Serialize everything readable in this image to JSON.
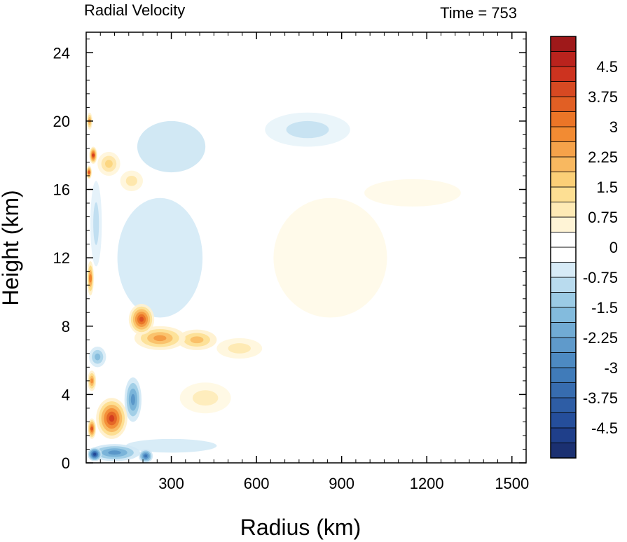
{
  "chart_data": {
    "type": "heatmap",
    "title_left": "Radial Velocity",
    "title_right": "Time = 753",
    "xlabel": "Radius (km)",
    "ylabel": "Height (km)",
    "xlim": [
      0,
      1550
    ],
    "ylim": [
      0,
      25.2
    ],
    "x_ticks": [
      300,
      600,
      900,
      1200,
      1500
    ],
    "x_tick_labels": [
      "300",
      "600",
      "900",
      "1200",
      "1500"
    ],
    "y_ticks": [
      0,
      4,
      8,
      12,
      16,
      20,
      24
    ],
    "y_tick_labels": [
      "0",
      "4",
      "8",
      "12",
      "16",
      "20",
      "24"
    ],
    "colorbar": {
      "min": -5.25,
      "max": 5.25,
      "step": 0.375,
      "labels": [
        "4.5",
        "3.75",
        "3",
        "2.25",
        "1.5",
        "0.75",
        "0",
        "-0.75",
        "-1.5",
        "-2.25",
        "-3",
        "-3.75",
        "-4.5"
      ],
      "label_values": [
        4.5,
        3.75,
        3,
        2.25,
        1.5,
        0.75,
        0,
        -0.75,
        -1.5,
        -2.25,
        -3,
        -3.75,
        -4.5
      ]
    },
    "features": [
      {
        "x": 90,
        "y": 2.6,
        "rx": 55,
        "ry": 1.2,
        "v": 4.2
      },
      {
        "x": 20,
        "y": 2.0,
        "rx": 15,
        "ry": 0.6,
        "v": 3.8
      },
      {
        "x": 195,
        "y": 8.4,
        "rx": 45,
        "ry": 0.9,
        "v": 3.9
      },
      {
        "x": 260,
        "y": 7.3,
        "rx": 90,
        "ry": 0.7,
        "v": 2.6
      },
      {
        "x": 390,
        "y": 7.2,
        "rx": 70,
        "ry": 0.6,
        "v": 2.0
      },
      {
        "x": 540,
        "y": 6.7,
        "rx": 80,
        "ry": 0.6,
        "v": 1.0
      },
      {
        "x": 15,
        "y": 10.8,
        "rx": 12,
        "ry": 1.0,
        "v": 3.0
      },
      {
        "x": 25,
        "y": 18.0,
        "rx": 14,
        "ry": 0.5,
        "v": 4.2
      },
      {
        "x": 10,
        "y": 17.0,
        "rx": 10,
        "ry": 0.4,
        "v": 3.8
      },
      {
        "x": 12,
        "y": 20.0,
        "rx": 10,
        "ry": 0.5,
        "v": 2.6
      },
      {
        "x": 80,
        "y": 17.5,
        "rx": 40,
        "ry": 0.7,
        "v": 1.6
      },
      {
        "x": 160,
        "y": 16.5,
        "rx": 40,
        "ry": 0.6,
        "v": 1.1
      },
      {
        "x": 20,
        "y": 4.8,
        "rx": 15,
        "ry": 0.6,
        "v": 2.8
      },
      {
        "x": 100,
        "y": 0.6,
        "rx": 90,
        "ry": 0.5,
        "v": -2.6
      },
      {
        "x": 30,
        "y": 0.5,
        "rx": 25,
        "ry": 0.4,
        "v": -4.5
      },
      {
        "x": 210,
        "y": 0.4,
        "rx": 25,
        "ry": 0.4,
        "v": -3.4
      },
      {
        "x": 165,
        "y": 3.7,
        "rx": 30,
        "ry": 1.3,
        "v": -2.6
      },
      {
        "x": 40,
        "y": 6.2,
        "rx": 30,
        "ry": 0.6,
        "v": -1.7
      },
      {
        "x": 35,
        "y": 14.0,
        "rx": 20,
        "ry": 2.5,
        "v": -0.9
      },
      {
        "x": 300,
        "y": 18.5,
        "rx": 120,
        "ry": 1.5,
        "v": -0.7
      },
      {
        "x": 780,
        "y": 19.5,
        "rx": 150,
        "ry": 1.0,
        "v": -0.8
      },
      {
        "x": 420,
        "y": 3.8,
        "rx": 90,
        "ry": 0.9,
        "v": 0.9
      },
      {
        "x": 300,
        "y": 1.0,
        "rx": 160,
        "ry": 0.4,
        "v": -0.6
      },
      {
        "x": 860,
        "y": 12.0,
        "rx": 200,
        "ry": 3.5,
        "v": 0.4
      },
      {
        "x": 1150,
        "y": 15.8,
        "rx": 170,
        "ry": 0.8,
        "v": 0.4
      },
      {
        "x": 260,
        "y": 12.0,
        "rx": 150,
        "ry": 3.5,
        "v": -0.6
      }
    ]
  }
}
